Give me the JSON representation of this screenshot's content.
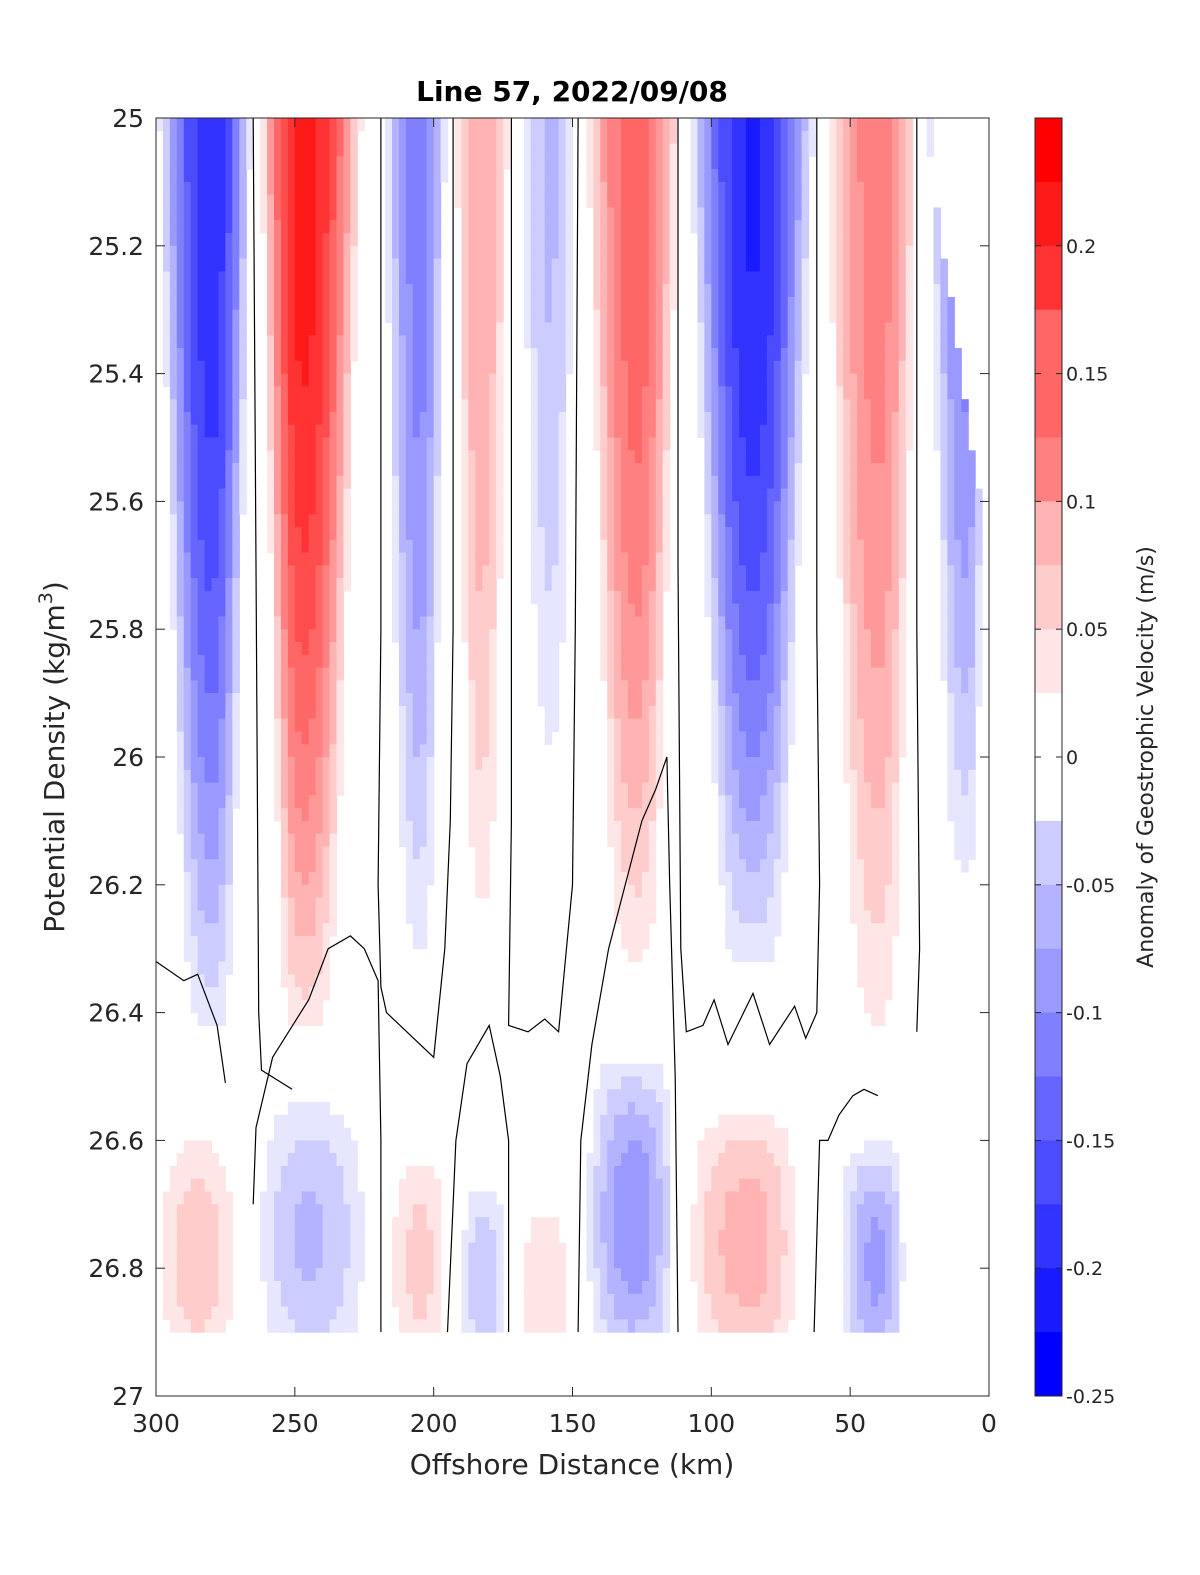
{
  "chart_data": {
    "type": "heatmap",
    "subtype": "filled-contour",
    "title": "Line 57, 2022/09/08",
    "xlabel": "Offshore Distance (km)",
    "ylabel_main": "Potential Density (kg/m",
    "ylabel_sup": "3",
    "ylabel_close": ")",
    "colorbar_label": "Anomaly of Geostrophic Velocity (m/s)",
    "xlim": [
      300,
      0
    ],
    "x_reversed": true,
    "ylim": [
      25,
      27
    ],
    "y_reversed": true,
    "x_ticks": [
      300,
      250,
      200,
      150,
      100,
      50,
      0
    ],
    "x_tick_labels": [
      "300",
      "250",
      "200",
      "150",
      "100",
      "50",
      "0"
    ],
    "y_ticks": [
      25,
      25.2,
      25.4,
      25.6,
      25.8,
      26,
      26.2,
      26.4,
      26.6,
      26.8,
      27
    ],
    "y_tick_labels": [
      "25",
      "25.2",
      "25.4",
      "25.6",
      "25.8",
      "26",
      "26.2",
      "26.4",
      "26.6",
      "26.8",
      "27"
    ],
    "colorbar_range": [
      -0.25,
      0.25
    ],
    "colorbar_ticks": [
      0.2,
      0.15,
      0.1,
      0.05,
      0,
      -0.05,
      -0.1,
      -0.15,
      -0.2,
      -0.25
    ],
    "colorbar_tick_labels": [
      "0.2",
      "0.15",
      "0.1",
      "0.05",
      "0",
      "-0.05",
      "-0.1",
      "-0.15",
      "-0.2",
      "-0.25"
    ],
    "colorbar_levels_step": 0.025,
    "colormap": {
      "negative": "#0000ff",
      "zero": "#ffffff",
      "positive": "#ff0000"
    },
    "zero_contour_color": "#000000",
    "data_y_range": [
      25,
      26.9
    ],
    "upper_cores": [
      {
        "x_center": 280,
        "x_west": 300,
        "x_east": 265,
        "peak": -0.22,
        "y_bottom": 26.42
      },
      {
        "x_center": 247,
        "x_west": 263,
        "x_east": 225,
        "peak": 0.24,
        "y_bottom": 26.42
      },
      {
        "x_center": 205,
        "x_west": 219,
        "x_east": 195,
        "peak": -0.14,
        "y_bottom": 26.32
      },
      {
        "x_center": 183,
        "x_west": 193,
        "x_east": 172,
        "peak": 0.1,
        "y_bottom": 26.3
      },
      {
        "x_center": 158,
        "x_west": 170,
        "x_east": 148,
        "peak": -0.08,
        "y_bottom": 26.08
      },
      {
        "x_center": 127,
        "x_west": 146,
        "x_east": 111,
        "peak": 0.17,
        "y_bottom": 26.32
      },
      {
        "x_center": 85,
        "x_west": 109,
        "x_east": 62,
        "peak": -0.23,
        "y_bottom": 26.32
      },
      {
        "x_center": 40,
        "x_west": 60,
        "x_east": 25,
        "peak": 0.14,
        "y_bottom": 26.44
      },
      {
        "x_center": 8,
        "x_west": 23,
        "x_east": 0,
        "peak": -0.14,
        "y_bottom": 26.2
      }
    ],
    "lower_cores": [
      {
        "x_center": 285,
        "x_west": 300,
        "x_east": 270,
        "peak": 0.07,
        "y_top": 26.56
      },
      {
        "x_center": 245,
        "x_west": 265,
        "x_east": 222,
        "peak": -0.08,
        "y_top": 26.5
      },
      {
        "x_center": 205,
        "x_west": 217,
        "x_east": 194,
        "peak": 0.06,
        "y_top": 26.58
      },
      {
        "x_center": 182,
        "x_west": 191,
        "x_east": 173,
        "peak": -0.07,
        "y_top": 26.64
      },
      {
        "x_center": 160,
        "x_west": 170,
        "x_east": 150,
        "peak": 0.05,
        "y_top": 26.66
      },
      {
        "x_center": 128,
        "x_west": 146,
        "x_east": 112,
        "peak": -0.12,
        "y_top": 26.44
      },
      {
        "x_center": 87,
        "x_west": 110,
        "x_east": 67,
        "peak": 0.09,
        "y_top": 26.52
      },
      {
        "x_center": 40,
        "x_west": 55,
        "x_east": 30,
        "peak": -0.11,
        "y_top": 26.58
      }
    ],
    "zero_contours": [
      [
        [
          265,
          25
        ],
        [
          264,
          25.7
        ],
        [
          263,
          26.4
        ],
        [
          262,
          26.49
        ],
        [
          251,
          26.52
        ]
      ],
      [
        [
          219,
          25
        ],
        [
          219,
          25.8
        ],
        [
          220,
          26.2
        ],
        [
          219,
          26.36
        ],
        [
          217,
          26.4
        ],
        [
          200,
          26.47
        ],
        [
          196,
          26.3
        ],
        [
          194,
          26.1
        ],
        [
          193,
          25.8
        ],
        [
          193,
          25
        ]
      ],
      [
        [
          172,
          25
        ],
        [
          172,
          25.8
        ],
        [
          172,
          26.1
        ],
        [
          173,
          26.42
        ],
        [
          166,
          26.43
        ],
        [
          160,
          26.41
        ],
        [
          155,
          26.43
        ],
        [
          150,
          26.2
        ],
        [
          149,
          25.8
        ],
        [
          148,
          25
        ]
      ],
      [
        [
          112,
          25
        ],
        [
          112,
          25.7
        ],
        [
          111,
          26.3
        ],
        [
          109,
          26.43
        ],
        [
          103,
          26.42
        ],
        [
          99,
          26.38
        ],
        [
          94,
          26.45
        ],
        [
          85,
          26.37
        ],
        [
          79,
          26.45
        ],
        [
          70,
          26.39
        ],
        [
          66,
          26.44
        ],
        [
          62,
          26.4
        ],
        [
          61,
          26.2
        ],
        [
          62,
          25.8
        ],
        [
          62,
          25
        ]
      ],
      [
        [
          26,
          25
        ],
        [
          26,
          25.8
        ],
        [
          25,
          26.3
        ],
        [
          26,
          26.43
        ]
      ],
      [
        [
          300,
          26.32
        ],
        [
          290,
          26.35
        ],
        [
          285,
          26.34
        ],
        [
          278,
          26.42
        ],
        [
          275,
          26.51
        ]
      ],
      [
        [
          265,
          26.7
        ],
        [
          264,
          26.58
        ],
        [
          258,
          26.47
        ],
        [
          245,
          26.38
        ],
        [
          238,
          26.3
        ],
        [
          230,
          26.28
        ],
        [
          225,
          26.3
        ],
        [
          220,
          26.35
        ],
        [
          219,
          26.6
        ],
        [
          219,
          26.9
        ]
      ],
      [
        [
          195,
          26.9
        ],
        [
          192,
          26.6
        ],
        [
          188,
          26.48
        ],
        [
          180,
          26.42
        ],
        [
          176,
          26.5
        ],
        [
          173,
          26.6
        ],
        [
          173,
          26.9
        ]
      ],
      [
        [
          148,
          26.9
        ],
        [
          147,
          26.6
        ],
        [
          143,
          26.45
        ],
        [
          137,
          26.3
        ],
        [
          125,
          26.1
        ],
        [
          120,
          26.05
        ],
        [
          116,
          26
        ]
      ],
      [
        [
          116,
          26
        ],
        [
          115,
          26.2
        ],
        [
          113,
          26.5
        ],
        [
          112,
          26.9
        ]
      ],
      [
        [
          63,
          26.9
        ],
        [
          61,
          26.6
        ],
        [
          58,
          26.6
        ],
        [
          54,
          26.56
        ],
        [
          49,
          26.53
        ],
        [
          45,
          26.52
        ],
        [
          40,
          26.53
        ]
      ]
    ]
  }
}
